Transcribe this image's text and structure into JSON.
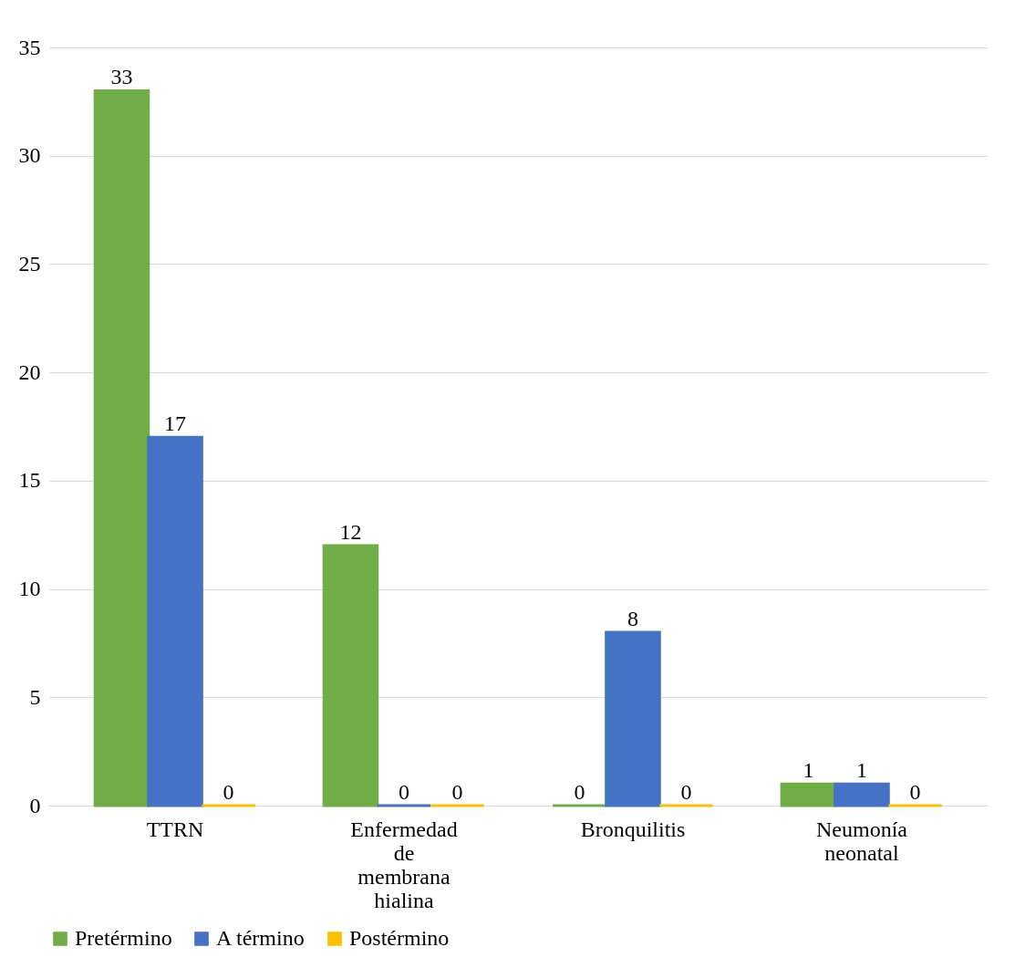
{
  "chart_data": {
    "type": "bar",
    "categories": [
      "TTRN",
      "Enfermedad de membrana hialina",
      "Bronquilitis",
      "Neumonía neonatal"
    ],
    "series": [
      {
        "name": "Pretérmino",
        "color": "#70ad47",
        "values": [
          33,
          12,
          0,
          1
        ]
      },
      {
        "name": "A término",
        "color": "#4472c4",
        "values": [
          17,
          0,
          8,
          1
        ]
      },
      {
        "name": "Postérmino",
        "color": "#ffc000",
        "values": [
          0,
          0,
          0,
          0
        ]
      }
    ],
    "ylim": [
      0,
      35
    ],
    "yticks": [
      0,
      5,
      10,
      15,
      20,
      25,
      30,
      35
    ],
    "grid": "y",
    "legend": "bottom",
    "data_labels": true
  }
}
